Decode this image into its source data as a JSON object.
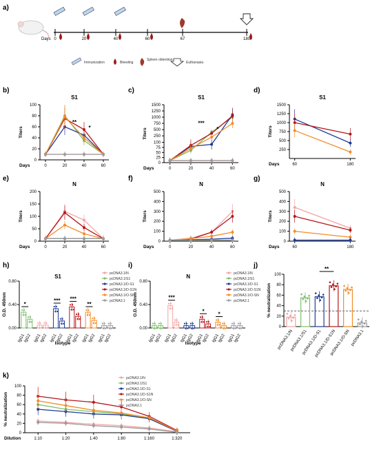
{
  "colors": {
    "pcDNA3.1/N": "#f4a3a3",
    "pcDNA3.1/S1": "#7fbf6a",
    "pcDNA3.1/D-S1": "#1f3a93",
    "pcDNA3.1/D-S1N": "#b3161b",
    "pcDNA3.1/O-SN": "#f28c28",
    "pcDNA3.1": "#9a9a9a"
  },
  "series_names": [
    "pcDNA3.1/N",
    "pcDNA3.1/S1",
    "pcDNA3.1/D-S1",
    "pcDNA3.1/D-S1N",
    "pcDNA3.1/O-SN",
    "pcDNA3.1"
  ],
  "timeline": {
    "panel": "a)",
    "days_label": "Days",
    "days": [
      "0",
      "20",
      "40",
      "60",
      "67",
      "180"
    ],
    "legend": {
      "immunization": "Immunization",
      "bleeding": "Bleeding",
      "spleen": "Spleen obtention",
      "euthanasia": "Euthanasia"
    }
  },
  "chart_data": [
    {
      "panel": "b)",
      "type": "line",
      "title": "S1",
      "ylabel": "Titers",
      "xlabel": "Days",
      "x": [
        0,
        20,
        40,
        60
      ],
      "ylim": [
        0,
        100
      ],
      "yticks": [
        0,
        20,
        40,
        60,
        80,
        100
      ],
      "series": [
        {
          "name": "pcDNA3.1/N",
          "values": [
            10,
            10,
            10,
            10
          ]
        },
        {
          "name": "pcDNA3.1/S1",
          "values": [
            10,
            80,
            35,
            10
          ]
        },
        {
          "name": "pcDNA3.1/D-S1",
          "values": [
            10,
            60,
            45,
            10
          ]
        },
        {
          "name": "pcDNA3.1/D-S1N",
          "values": [
            10,
            75,
            55,
            10
          ]
        },
        {
          "name": "pcDNA3.1/O-SN",
          "values": [
            10,
            78,
            40,
            10
          ]
        },
        {
          "name": "pcDNA3.1",
          "values": [
            10,
            10,
            10,
            10
          ]
        }
      ],
      "annotations": [
        "**",
        "*"
      ]
    },
    {
      "panel": "c)",
      "type": "line",
      "title": "S1",
      "ylabel": "Titers",
      "xlabel": "Days",
      "x": [
        0,
        20,
        40,
        60
      ],
      "yticks": [
        0,
        25,
        50,
        75,
        100,
        250,
        500,
        750,
        1000,
        1250,
        1500
      ],
      "broken_axis": true,
      "series": [
        {
          "name": "pcDNA3.1/N",
          "values": [
            10,
            10,
            10,
            10
          ]
        },
        {
          "name": "pcDNA3.1/S1",
          "values": [
            10,
            60,
            400,
            1000
          ]
        },
        {
          "name": "pcDNA3.1/D-S1",
          "values": [
            10,
            80,
            90,
            1100
          ]
        },
        {
          "name": "pcDNA3.1/D-S1N",
          "values": [
            10,
            85,
            350,
            1050
          ]
        },
        {
          "name": "pcDNA3.1/O-SN",
          "values": [
            10,
            70,
            200,
            750
          ]
        },
        {
          "name": "pcDNA3.1",
          "values": [
            10,
            10,
            10,
            10
          ]
        }
      ],
      "annotations": [
        "***",
        "*"
      ]
    },
    {
      "panel": "d)",
      "type": "line",
      "title": "S1",
      "ylabel": "Titers",
      "xlabel": "Days",
      "x": [
        60,
        180
      ],
      "ylim": [
        0,
        1500
      ],
      "yticks": [
        250,
        500,
        750,
        1000,
        1250,
        1500
      ],
      "series": [
        {
          "name": "pcDNA3.1/D-S1",
          "values": [
            1100,
            430
          ]
        },
        {
          "name": "pcDNA3.1/D-S1N",
          "values": [
            1000,
            680
          ]
        },
        {
          "name": "pcDNA3.1/O-SN",
          "values": [
            780,
            180
          ]
        }
      ]
    },
    {
      "panel": "e)",
      "type": "line",
      "title": "N",
      "ylabel": "Titers",
      "xlabel": "Days",
      "x": [
        0,
        20,
        40,
        60
      ],
      "ylim": [
        0,
        200
      ],
      "yticks": [
        0,
        50,
        100,
        150,
        200
      ],
      "series": [
        {
          "name": "pcDNA3.1/N",
          "values": [
            10,
            120,
            85,
            10
          ]
        },
        {
          "name": "pcDNA3.1/S1",
          "values": [
            10,
            10,
            10,
            10
          ]
        },
        {
          "name": "pcDNA3.1/D-S1",
          "values": [
            10,
            10,
            10,
            10
          ]
        },
        {
          "name": "pcDNA3.1/D-S1N",
          "values": [
            10,
            115,
            55,
            10
          ]
        },
        {
          "name": "pcDNA3.1/O-SN",
          "values": [
            10,
            65,
            30,
            10
          ]
        },
        {
          "name": "pcDNA3.1",
          "values": [
            10,
            10,
            10,
            10
          ]
        }
      ]
    },
    {
      "panel": "f)",
      "type": "line",
      "title": "N",
      "ylabel": "Titers",
      "xlabel": "Days",
      "x": [
        0,
        20,
        40,
        60
      ],
      "ylim": [
        0,
        500
      ],
      "yticks": [
        0,
        100,
        200,
        300,
        400,
        500
      ],
      "series": [
        {
          "name": "pcDNA3.1/N",
          "values": [
            10,
            30,
            90,
            300
          ]
        },
        {
          "name": "pcDNA3.1/S1",
          "values": [
            10,
            10,
            10,
            10
          ]
        },
        {
          "name": "pcDNA3.1/D-S1",
          "values": [
            10,
            15,
            20,
            30
          ]
        },
        {
          "name": "pcDNA3.1/D-S1N",
          "values": [
            10,
            20,
            90,
            250
          ]
        },
        {
          "name": "pcDNA3.1/O-SN",
          "values": [
            10,
            25,
            50,
            90
          ]
        },
        {
          "name": "pcDNA3.1",
          "values": [
            10,
            10,
            10,
            10
          ]
        }
      ]
    },
    {
      "panel": "g)",
      "type": "line",
      "title": "N",
      "ylabel": "Titers",
      "xlabel": "Days",
      "x": [
        60,
        180
      ],
      "ylim": [
        0,
        500
      ],
      "yticks": [
        0,
        100,
        200,
        300,
        400,
        500
      ],
      "series": [
        {
          "name": "pcDNA3.1/N",
          "values": [
            340,
            130
          ]
        },
        {
          "name": "pcDNA3.1/D-S1N",
          "values": [
            250,
            110
          ]
        },
        {
          "name": "pcDNA3.1/O-SN",
          "values": [
            100,
            40
          ]
        },
        {
          "name": "pcDNA3.1/D-S1",
          "values": [
            10,
            10
          ]
        }
      ]
    },
    {
      "panel": "h)",
      "type": "bar",
      "title": "S1",
      "ylabel": "O.D. 450nm",
      "xlabel": "Isotype",
      "ylim": [
        0,
        0.8
      ],
      "yticks": [
        0.0,
        0.4,
        0.8
      ],
      "categories": [
        "IgG1",
        "IgG2"
      ],
      "series": [
        {
          "name": "pcDNA3.1/S1",
          "values": [
            0.27,
            0.15
          ]
        },
        {
          "name": "pcDNA3.1/N",
          "values": [
            0.05,
            0.05
          ]
        },
        {
          "name": "pcDNA3.1/D-S1",
          "values": [
            0.33,
            0.12
          ]
        },
        {
          "name": "pcDNA3.1/D-S1N",
          "values": [
            0.36,
            0.2
          ]
        },
        {
          "name": "pcDNA3.1/O-SN",
          "values": [
            0.27,
            0.13
          ]
        },
        {
          "name": "pcDNA3.1",
          "values": [
            0.04,
            0.04
          ]
        }
      ],
      "annotations": [
        "*",
        "***",
        "***",
        "**"
      ]
    },
    {
      "panel": "i)",
      "type": "bar",
      "title": "N",
      "ylabel": "O.D. 450nm",
      "xlabel": "Isotype",
      "ylim": [
        0,
        0.8
      ],
      "yticks": [
        0.0,
        0.4,
        0.8
      ],
      "categories": [
        "IgG1",
        "IgG2"
      ],
      "series": [
        {
          "name": "pcDNA3.1/S1",
          "values": [
            0.04,
            0.04
          ]
        },
        {
          "name": "pcDNA3.1/N",
          "values": [
            0.38,
            0.1
          ]
        },
        {
          "name": "pcDNA3.1/D-S1",
          "values": [
            0.04,
            0.04
          ]
        },
        {
          "name": "pcDNA3.1/D-S1N",
          "values": [
            0.15,
            0.07
          ]
        },
        {
          "name": "pcDNA3.1/O-SN",
          "values": [
            0.1,
            0.04
          ]
        },
        {
          "name": "pcDNA3.1",
          "values": [
            0.04,
            0.04
          ]
        }
      ],
      "annotations": [
        "***",
        "*",
        "*"
      ]
    },
    {
      "panel": "j)",
      "type": "bar",
      "ylabel": "% neutralization",
      "ylim": [
        0,
        100
      ],
      "yticks": [
        0,
        20,
        40,
        60,
        80,
        100
      ],
      "dashed_line": 30,
      "categories": [
        "pcDNA3.1/N",
        "pcDNA3.1/S1",
        "pcDNA3.1/D-S1",
        "pcDNA3.1/D-S1N",
        "pcDNA3.1/O-SN",
        "pcDNA3.1"
      ],
      "values": [
        18,
        55,
        57,
        78,
        71,
        7
      ],
      "annotations": [
        "**"
      ]
    },
    {
      "panel": "k)",
      "type": "line",
      "ylabel": "% neutralization",
      "xlabel": "Dilution",
      "categories": [
        "1:10",
        "1:20",
        "1:40",
        "1:80",
        "1:160",
        "1:320"
      ],
      "ylim": [
        0,
        100
      ],
      "yticks": [
        0,
        20,
        40,
        60,
        80,
        100
      ],
      "series": [
        {
          "name": "pcDNA3.1/N",
          "values": [
            25,
            22,
            18,
            15,
            10,
            2
          ]
        },
        {
          "name": "pcDNA3.1/S1",
          "values": [
            60,
            50,
            45,
            40,
            30,
            5
          ]
        },
        {
          "name": "pcDNA3.1/D-S1",
          "values": [
            50,
            45,
            40,
            38,
            30,
            3
          ]
        },
        {
          "name": "pcDNA3.1/D-S1N",
          "values": [
            78,
            70,
            65,
            55,
            35,
            5
          ]
        },
        {
          "name": "pcDNA3.1/O-SN",
          "values": [
            68,
            58,
            48,
            42,
            32,
            4
          ]
        },
        {
          "name": "pcDNA3.1",
          "values": [
            22,
            20,
            15,
            12,
            8,
            1
          ]
        }
      ]
    }
  ]
}
